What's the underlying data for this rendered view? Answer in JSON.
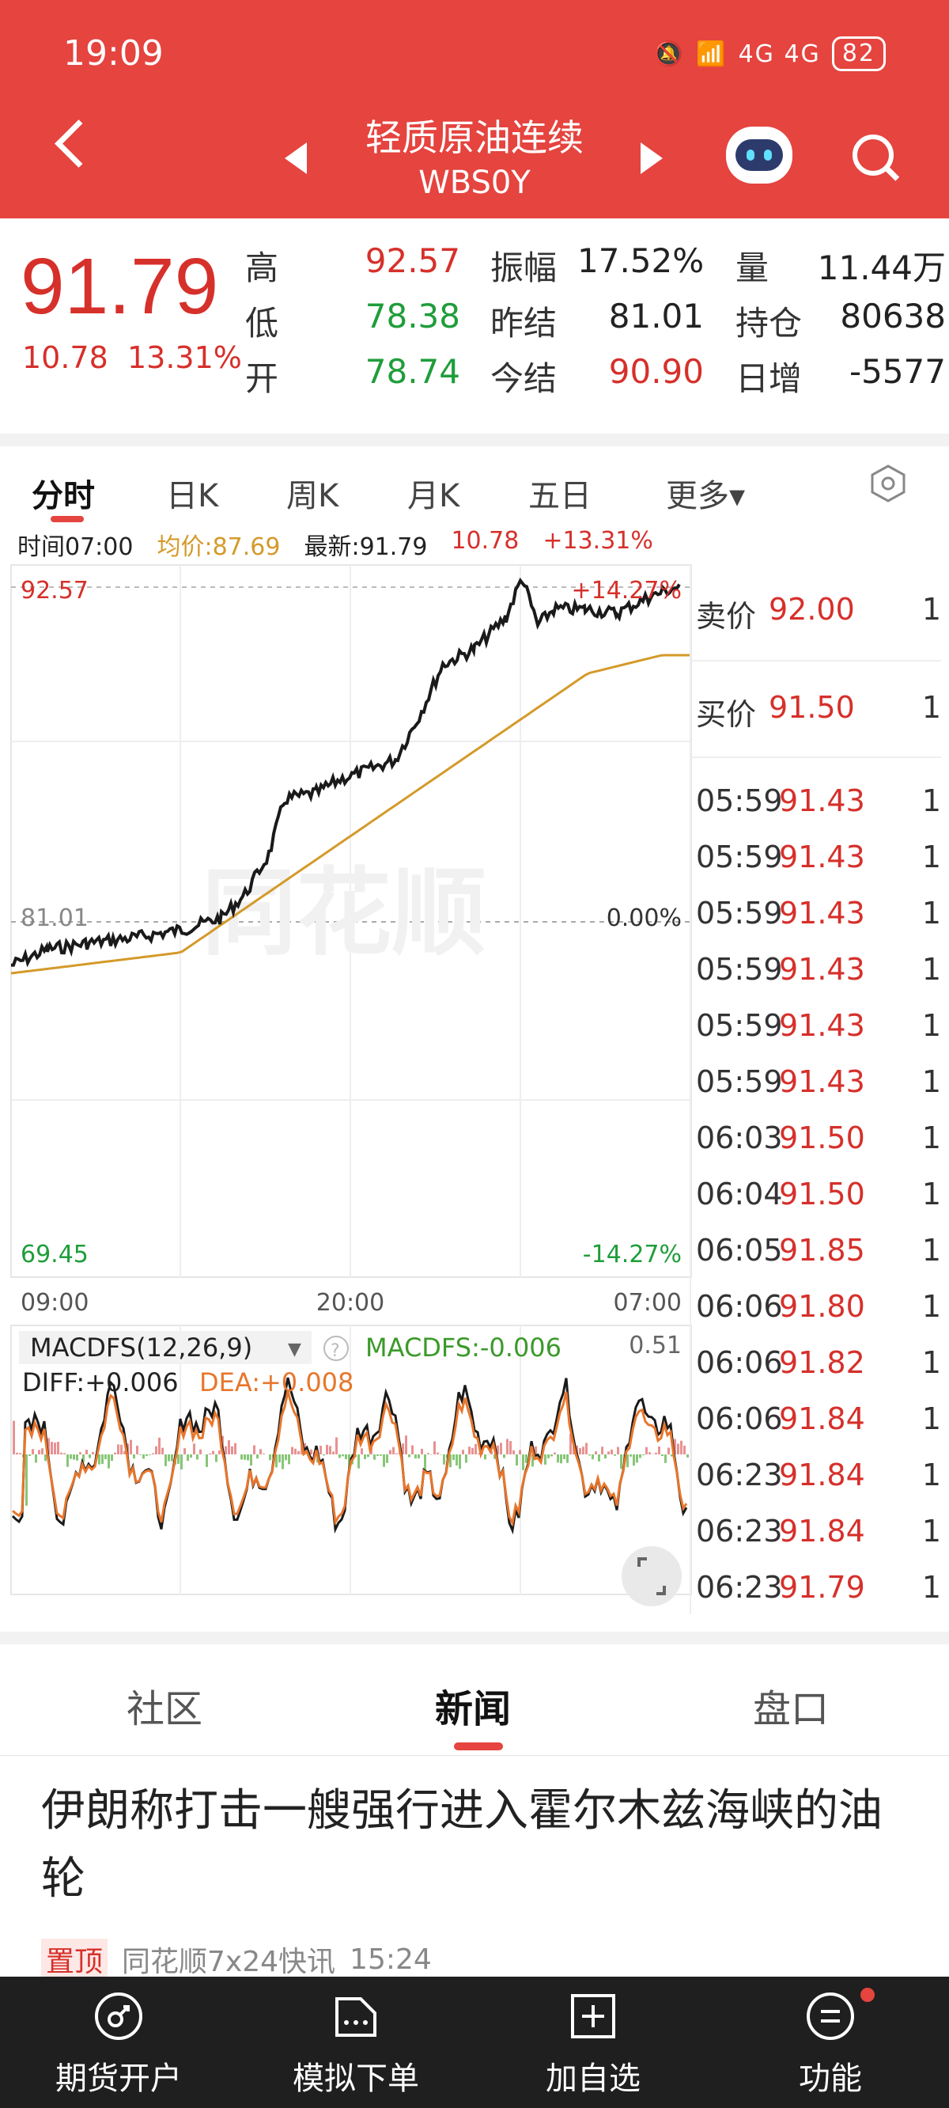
{
  "status": {
    "time": "19:09",
    "signal": "4G 4G",
    "battery": "82"
  },
  "header": {
    "name": "轻质原油连续",
    "code": "WBS0Y"
  },
  "quote": {
    "price": "91.79",
    "change": "10.78",
    "change_pct": "13.31%",
    "high_label": "高",
    "high": "92.57",
    "low_label": "低",
    "low": "78.38",
    "open_label": "开",
    "open": "78.74",
    "amp_label": "振幅",
    "amp": "17.52%",
    "prev_settle_label": "昨结",
    "prev_settle": "81.01",
    "settle_label": "今结",
    "settle": "90.90",
    "vol_label": "量",
    "vol": "11.44万",
    "oi_label": "持仓",
    "oi": "80638",
    "oi_chg_label": "日增",
    "oi_chg": "-5577"
  },
  "period_tabs": [
    "分时",
    "日K",
    "周K",
    "月K",
    "五日",
    "更多▾"
  ],
  "info": {
    "time": "时间07:00",
    "avg": "均价:87.69",
    "last": "最新:91.79",
    "chg": "10.78",
    "pct": "+13.31%"
  },
  "chart": {
    "high_label": "92.57",
    "high_pct": "+14.27%",
    "mid_label": "81.01",
    "mid_pct": "0.00%",
    "low_label": "69.45",
    "low_pct": "-14.27%",
    "watermark": "同花顺",
    "xticks": [
      "09:00",
      "20:00",
      "07:00"
    ],
    "macd_title": "MACDFS(12,26,9)",
    "macd_value": "MACDFS:-0.006",
    "macd_scale": "0.51",
    "diff": "DIFF:+0.006",
    "dea": "DEA:+0.008",
    "colors": {
      "price": "#1a1a1a",
      "avg": "#d49a2a",
      "up": "#e06c6c",
      "down": "#5fb34a",
      "dea": "#e8762c"
    }
  },
  "order_book": {
    "ask": {
      "label": "卖价",
      "price": "92.00",
      "vol": "1"
    },
    "bid": {
      "label": "买价",
      "price": "91.50",
      "vol": "1"
    },
    "ticks": [
      {
        "t": "05:59",
        "p": "91.43",
        "v": "1"
      },
      {
        "t": "05:59",
        "p": "91.43",
        "v": "1"
      },
      {
        "t": "05:59",
        "p": "91.43",
        "v": "1"
      },
      {
        "t": "05:59",
        "p": "91.43",
        "v": "1"
      },
      {
        "t": "05:59",
        "p": "91.43",
        "v": "1"
      },
      {
        "t": "05:59",
        "p": "91.43",
        "v": "1"
      },
      {
        "t": "06:03",
        "p": "91.50",
        "v": "1"
      },
      {
        "t": "06:04",
        "p": "91.50",
        "v": "1"
      },
      {
        "t": "06:05",
        "p": "91.85",
        "v": "1"
      },
      {
        "t": "06:06",
        "p": "91.80",
        "v": "1"
      },
      {
        "t": "06:06",
        "p": "91.82",
        "v": "1"
      },
      {
        "t": "06:06",
        "p": "91.84",
        "v": "1"
      },
      {
        "t": "06:23",
        "p": "91.84",
        "v": "1"
      },
      {
        "t": "06:23",
        "p": "91.84",
        "v": "1"
      },
      {
        "t": "06:23",
        "p": "91.79",
        "v": "1"
      }
    ]
  },
  "section_tabs": [
    "社区",
    "新闻",
    "盘口"
  ],
  "news": {
    "title": "伊朗称打击一艘强行进入霍尔木兹海峡的油轮",
    "tag": "置顶",
    "source": "同花顺7x24快讯",
    "time": "15:24"
  },
  "bottom_nav": [
    "期货开户",
    "模拟下单",
    "加自选",
    "功能"
  ]
}
